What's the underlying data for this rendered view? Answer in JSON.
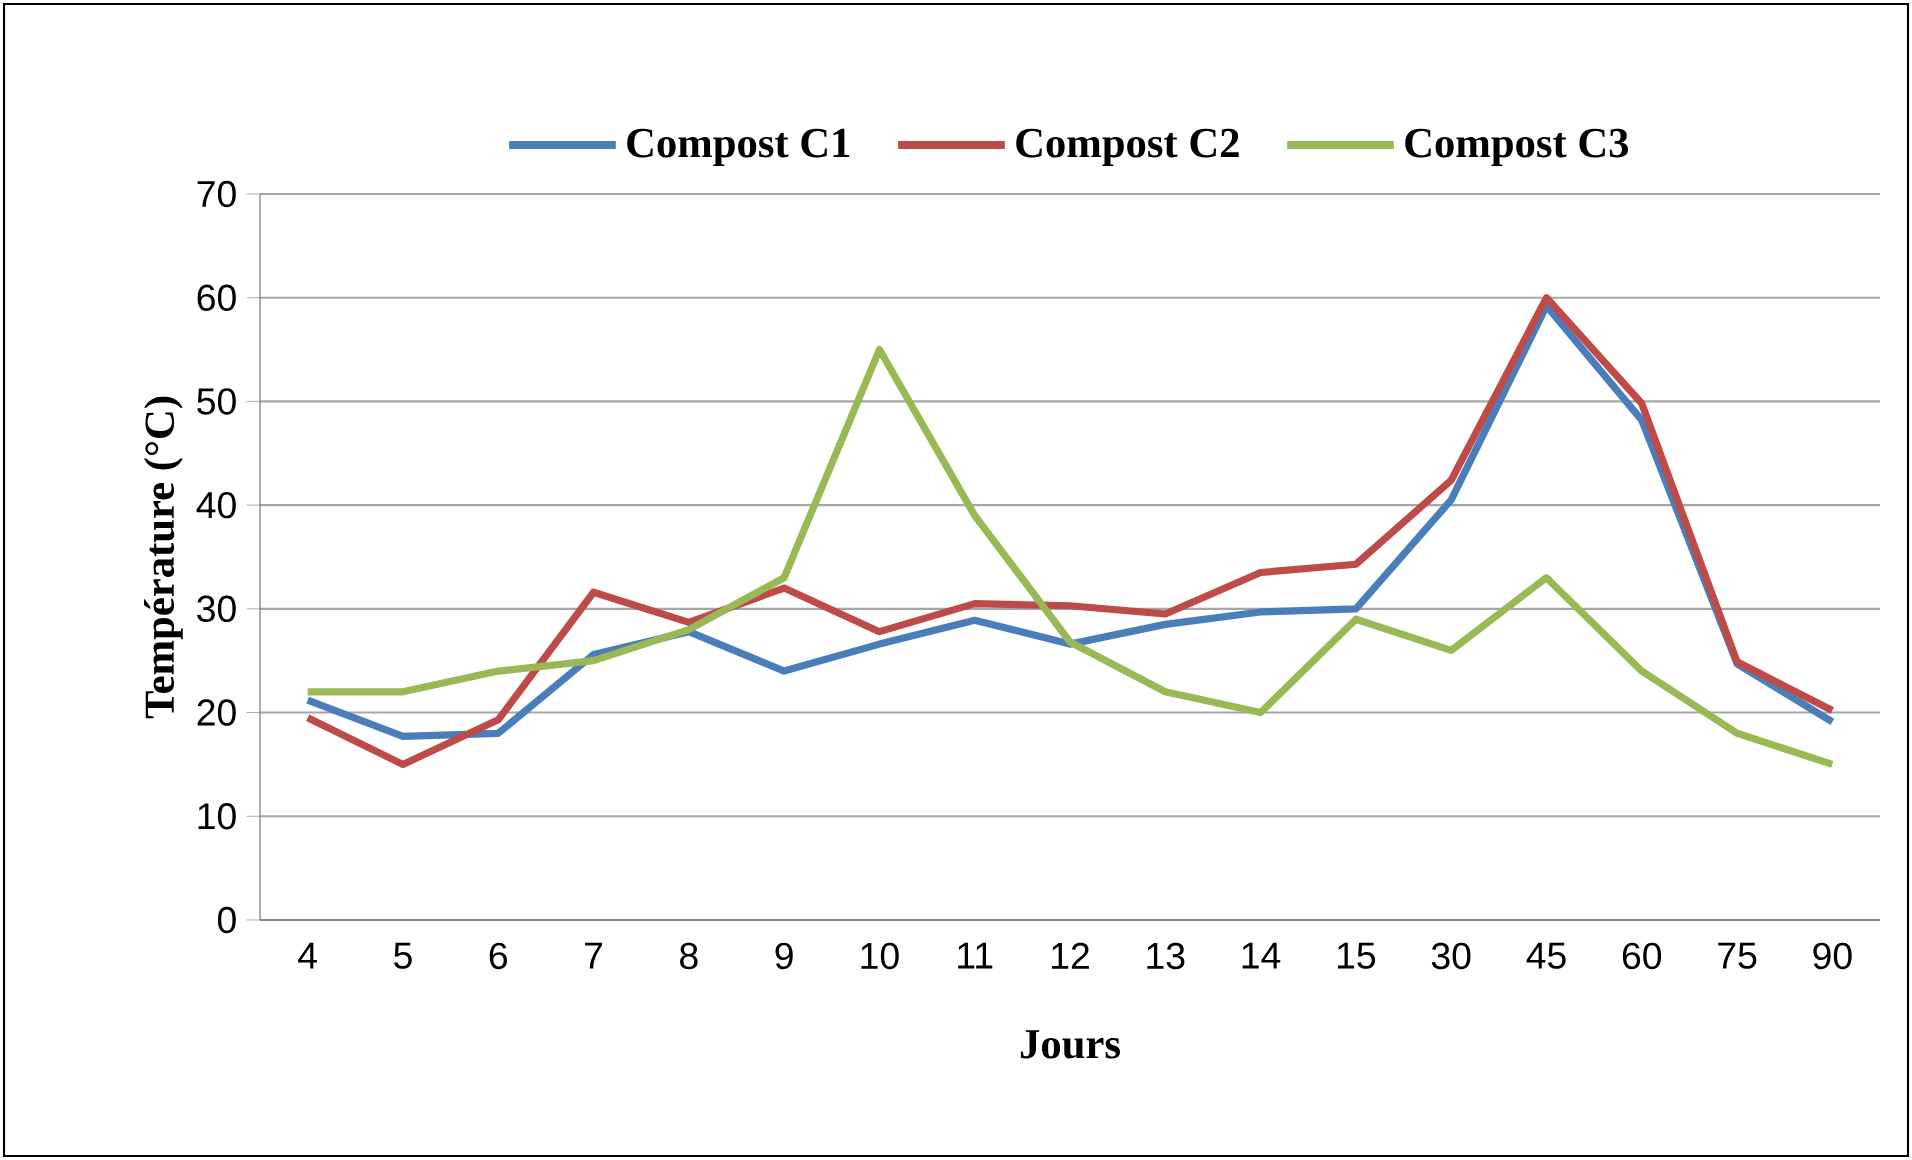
{
  "chart_data": {
    "type": "line",
    "xlabel": "Jours",
    "ylabel": "Température (°C)",
    "categories": [
      "4",
      "5",
      "6",
      "7",
      "8",
      "9",
      "10",
      "11",
      "12",
      "13",
      "14",
      "15",
      "30",
      "45",
      "60",
      "75",
      "90"
    ],
    "series": [
      {
        "name": "Compost C1",
        "color": "#4a7ebb",
        "values": [
          21.2,
          17.7,
          18,
          25.6,
          27.8,
          24,
          26.6,
          28.9,
          26.6,
          28.5,
          29.7,
          30,
          40.5,
          59.2,
          48.2,
          24.7,
          19.1
        ]
      },
      {
        "name": "Compost C2",
        "color": "#be4b48",
        "values": [
          19.5,
          15,
          19.3,
          31.6,
          28.7,
          32,
          27.8,
          30.5,
          30.3,
          29.5,
          33.5,
          34.3,
          42.4,
          60,
          49.8,
          24.9,
          20.2
        ]
      },
      {
        "name": "Compost C3",
        "color": "#98b954",
        "values": [
          22,
          22,
          24,
          25,
          28,
          33,
          55,
          39,
          26.8,
          22,
          20,
          29,
          26,
          33,
          24,
          18,
          15
        ]
      }
    ],
    "ylim": [
      0,
      70
    ],
    "yticks": [
      0,
      10,
      20,
      30,
      40,
      50,
      60,
      70
    ],
    "grid": "y",
    "legend": "top"
  }
}
